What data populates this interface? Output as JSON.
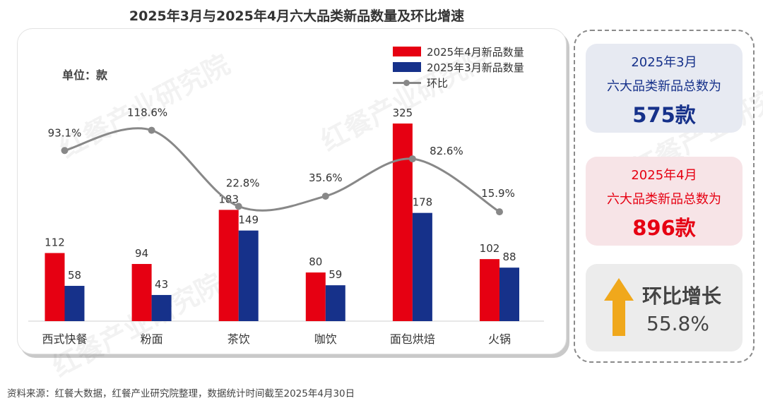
{
  "title": "2025年3月与2025年4月六大品类新品数量及环比增速",
  "unit_label": "单位：款",
  "legend": {
    "apr": "2025年4月新品数量",
    "mar": "2025年3月新品数量",
    "mom": "环比"
  },
  "colors": {
    "apr": "#e60012",
    "mar": "#16318a",
    "line": "#888888",
    "arrow": "#f0a81c"
  },
  "chart_data": {
    "type": "bar",
    "title": "2025年3月与2025年4月六大品类新品数量及环比增速",
    "categories": [
      "西式快餐",
      "粉面",
      "茶饮",
      "咖饮",
      "面包烘焙",
      "火锅"
    ],
    "series": [
      {
        "name": "2025年4月新品数量",
        "values": [
          112,
          94,
          183,
          80,
          325,
          102
        ]
      },
      {
        "name": "2025年3月新品数量",
        "values": [
          58,
          43,
          149,
          59,
          178,
          88
        ]
      },
      {
        "name": "环比",
        "type": "line",
        "values": [
          93.1,
          118.6,
          22.8,
          35.6,
          82.6,
          15.9
        ],
        "labels": [
          "93.1%",
          "118.6%",
          "22.8%",
          "35.6%",
          "82.6%",
          "15.9%"
        ]
      }
    ],
    "ylabel": "单位：款",
    "ylim": [
      0,
      340
    ]
  },
  "summary": {
    "mar": {
      "period": "2025年3月",
      "desc": "六大品类新品总数为",
      "total": "575款"
    },
    "apr": {
      "period": "2025年4月",
      "desc": "六大品类新品总数为",
      "total": "896款"
    },
    "growth": {
      "label": "环比增长",
      "value": "55.8%"
    }
  },
  "watermark": "红餐产业研究院",
  "source": "资料来源：红餐大数据，红餐产业研究院整理，数据统计时间截至2025年4月30日"
}
